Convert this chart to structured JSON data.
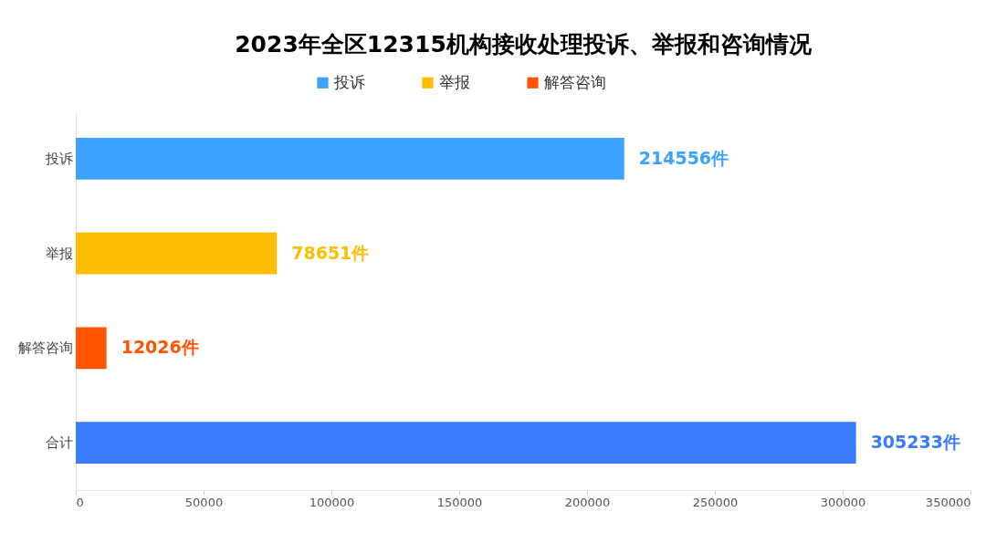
{
  "chart_data": {
    "type": "bar",
    "orientation": "horizontal",
    "title": "2023年全区12315机构接收处理投诉、举报和咨询情况",
    "categories": [
      "投诉",
      "举报",
      "解答咨询",
      "合计"
    ],
    "series": [
      {
        "name": "投诉",
        "color": "#3ba2ff",
        "values": [
          214556,
          null,
          null,
          null
        ],
        "value_labels": [
          "214556件",
          null,
          null,
          null
        ]
      },
      {
        "name": "举报",
        "color": "#fdbd00",
        "values": [
          null,
          78651,
          null,
          null
        ],
        "value_labels": [
          null,
          "78651件",
          null,
          null
        ]
      },
      {
        "name": "解答咨询",
        "color": "#ff5500",
        "values": [
          null,
          null,
          12026,
          null
        ],
        "value_labels": [
          null,
          null,
          "12026件",
          null
        ]
      },
      {
        "color": "#3a7bff",
        "values": [
          null,
          null,
          null,
          305233
        ],
        "value_labels": [
          null,
          null,
          null,
          "305233件"
        ]
      }
    ],
    "xlim": [
      0,
      350000
    ],
    "xticks": [
      0,
      50000,
      100000,
      150000,
      200000,
      250000,
      300000,
      350000
    ],
    "grid": false,
    "legend": "top"
  }
}
